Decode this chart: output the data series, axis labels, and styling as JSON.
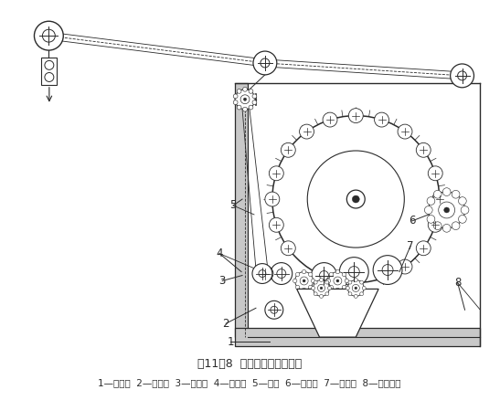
{
  "title": "图11－8  双动式钢丝针起毛机",
  "caption": "1—除尘箱  2—张力辊  3—毛刷辊  4—进呢辊  5—针辊  6—刷毛辊  7—出呢辊  8—起毛辊筒",
  "background_color": "#ffffff",
  "line_color": "#2a2a2a",
  "title_fontsize": 9,
  "caption_fontsize": 7.5
}
